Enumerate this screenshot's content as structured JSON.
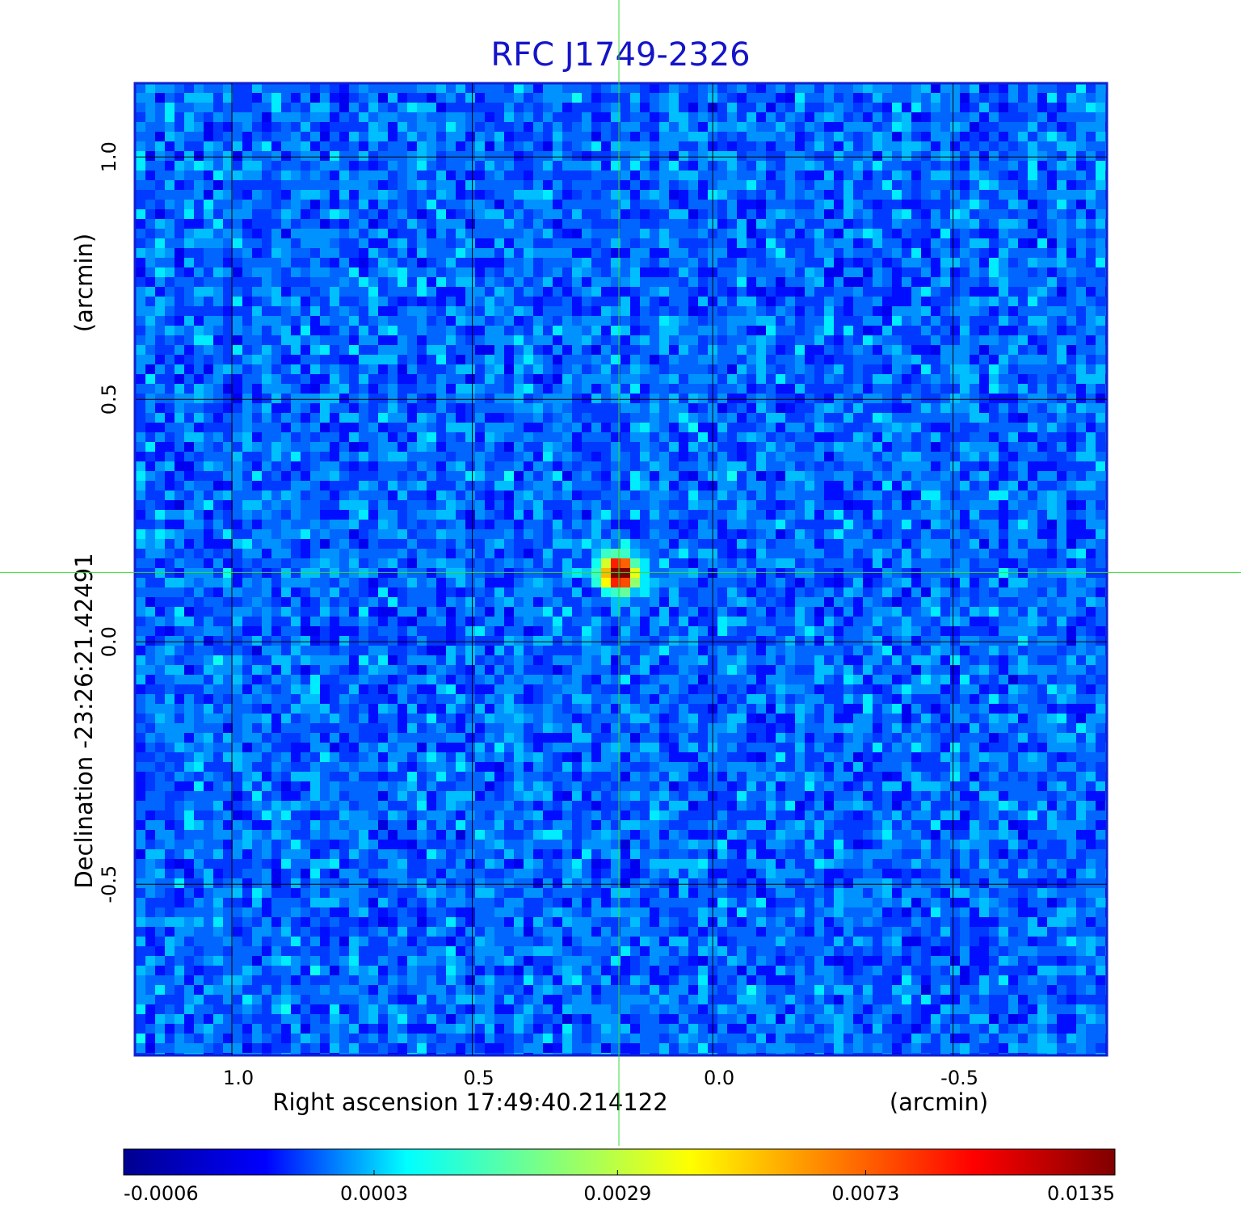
{
  "chart_data": {
    "type": "heatmap",
    "title": "RFC J1749-2326",
    "x_label": "Right ascension  17:49:40.214122",
    "x_unit": "(arcmin)",
    "y_label": "Declination  -23:26:21.42491",
    "y_unit": "(arcmin)",
    "xlim": [
      1.2,
      -0.82
    ],
    "ylim": [
      -0.853,
      1.152
    ],
    "xticks": [
      {
        "value": 1,
        "label": "1.0"
      },
      0.5,
      {
        "value": 0,
        "label": "0.0"
      },
      -0.5
    ],
    "yticks": [
      {
        "value": 1,
        "label": "1.0"
      },
      0.5,
      {
        "value": 0,
        "label": "0.0"
      },
      -0.5
    ],
    "grid": true,
    "crosshair": [
      0.195,
      0.143
    ],
    "colorbar": {
      "lim": [
        -0.0006,
        0.0135
      ],
      "scale": "sqrt",
      "ticks": [
        -0.0006,
        0.0003,
        0.0029,
        0.0073,
        0.0135
      ],
      "colors": [
        "#00008f",
        "#0000ff",
        "#00ffff",
        "#80ff80",
        "#ffff00",
        "#ff8000",
        "#ff0000",
        "#800000"
      ]
    }
  }
}
